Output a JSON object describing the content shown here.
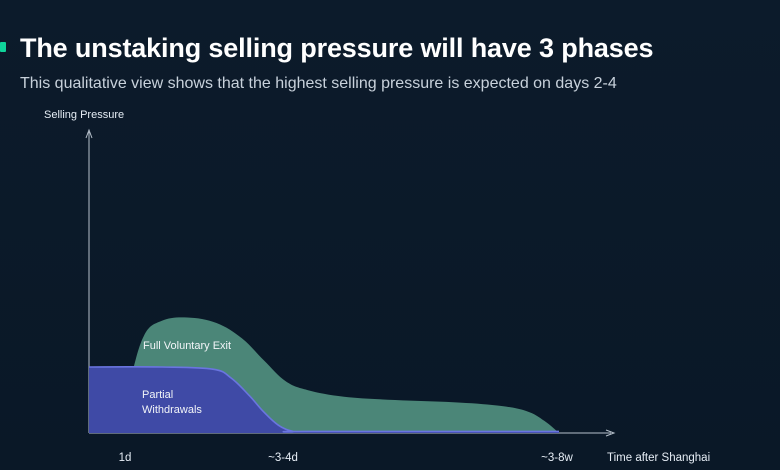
{
  "header": {
    "title": "The unstaking selling pressure will have 3 phases",
    "subtitle": "This qualitative view shows that the highest selling pressure is expected on days 2-4"
  },
  "colors": {
    "background": "#0b1a2a",
    "accent": "#10d49b",
    "full_voluntary_exit": "#4b8678",
    "partial_withdrawals": "#3f4aa6",
    "partial_withdrawals_edge": "#6a75e0",
    "axis": "#b7c1cc"
  },
  "chart_data": {
    "type": "area",
    "ylabel": "Selling Pressure",
    "xlabel": "Time after Shanghai",
    "x_ticks": [
      "1d",
      "~3-4d",
      "~3-8w"
    ],
    "grid": false,
    "series": [
      {
        "name": "Full Voluntary Exit",
        "x": [
          0.4,
          0.55,
          0.75,
          1.0,
          1.35,
          1.75,
          2.1,
          2.4,
          2.7,
          3.0,
          3.5,
          4.2,
          5.0,
          5.6,
          6.0,
          6.25,
          6.45
        ],
        "values": [
          0,
          4.3,
          8.8,
          10.2,
          10.5,
          10.0,
          8.6,
          6.6,
          4.7,
          3.9,
          3.3,
          3.0,
          2.8,
          2.5,
          2.0,
          1.1,
          0
        ]
      },
      {
        "name": "Partial Withdrawals",
        "x": [
          0,
          1.0,
          1.7,
          1.95,
          2.2,
          2.4,
          2.6,
          2.8,
          3.0,
          6.45
        ],
        "values": [
          6.0,
          6.0,
          5.8,
          5.0,
          3.4,
          1.9,
          0.7,
          0.15,
          0.15,
          0.15
        ]
      }
    ]
  }
}
